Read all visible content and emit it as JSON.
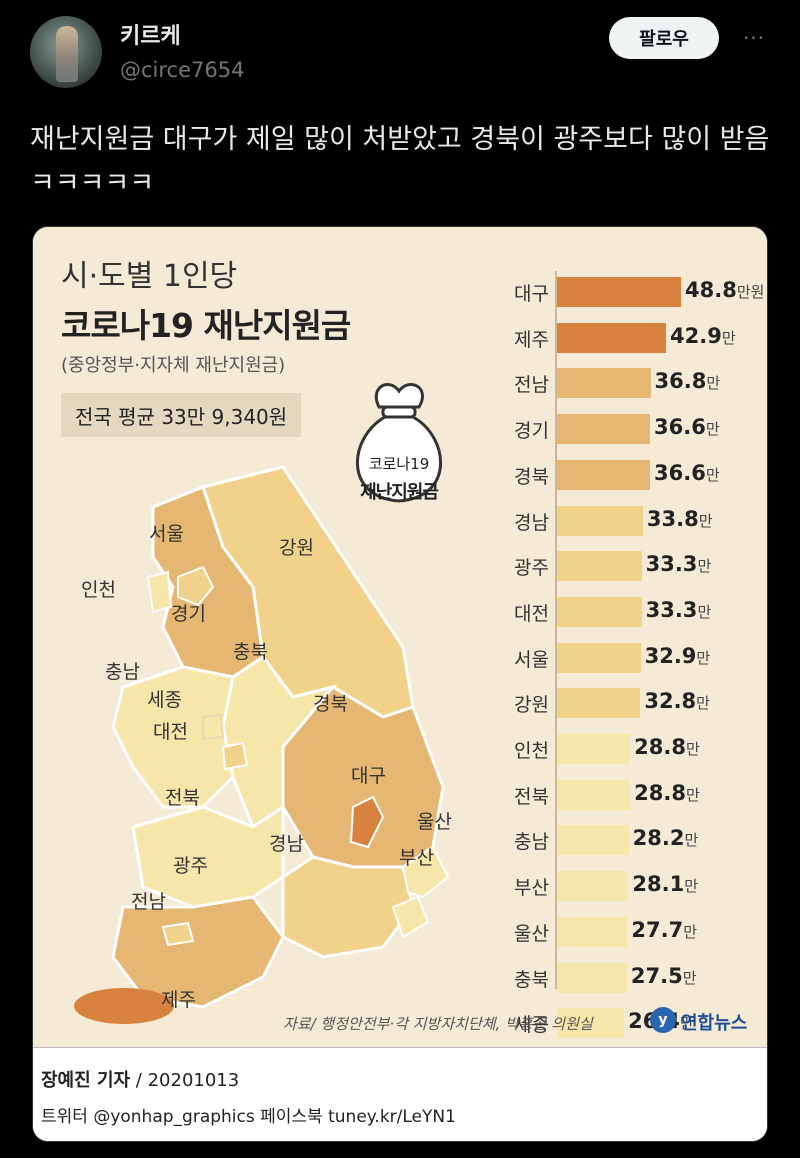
{
  "tweet": {
    "display_name": "키르케",
    "handle": "@circe7654",
    "follow_label": "팔로우",
    "more_label": "···",
    "text": "재난지원금 대구가 제일 많이 처받았고 경북이 광주보다 많이 받음ㅋㅋㅋㅋㅋ"
  },
  "graphic": {
    "title_line1": "시·도별 1인당",
    "title_line2": "코로나19 재난지원금",
    "subtitle": "(중앙정부·지자체 재난지원금)",
    "average": "전국 평균 33만 9,340원",
    "bag_label1": "코로나19",
    "bag_label2": "재난지원금",
    "source": "자료/ 행정안전부·각 지방자치단체, 박홍근 의원실",
    "logo_text": "연합뉴스",
    "reporter_name": "장예진 기자",
    "reporter_date": " / 20201013",
    "social": "트위터 @yonhap_graphics  페이스북 tuney.kr/LeYN1",
    "map_labels": {
      "seoul": "서울",
      "incheon": "인천",
      "gyeonggi": "경기",
      "gangwon": "강원",
      "chungbuk": "충북",
      "chungnam": "충남",
      "sejong": "세종",
      "daejeon": "대전",
      "gyeongbuk": "경북",
      "daegu": "대구",
      "jeonbuk": "전북",
      "gyeongnam": "경남",
      "ulsan": "울산",
      "busan": "부산",
      "gwangju": "광주",
      "jeonnam": "전남",
      "jeju": "제주"
    },
    "colors": {
      "top": "#d9823f",
      "high": "#e6b772",
      "mid": "#f0d28a",
      "low": "#f7e6aa"
    }
  },
  "chart_data": {
    "type": "bar",
    "orientation": "horizontal",
    "unit": "만원",
    "categories": [
      "대구",
      "제주",
      "전남",
      "경기",
      "경북",
      "경남",
      "광주",
      "대전",
      "서울",
      "강원",
      "인천",
      "전북",
      "충남",
      "부산",
      "울산",
      "충북",
      "세종"
    ],
    "values": [
      48.8,
      42.9,
      36.8,
      36.6,
      36.6,
      33.8,
      33.3,
      33.3,
      32.9,
      32.8,
      28.8,
      28.8,
      28.2,
      28.1,
      27.7,
      27.5,
      26.4
    ],
    "value_labels": [
      "48.8",
      "42.9",
      "36.8",
      "36.6",
      "36.6",
      "33.8",
      "33.3",
      "33.3",
      "32.9",
      "32.8",
      "28.8",
      "28.8",
      "28.2",
      "28.1",
      "27.7",
      "27.5",
      "26.4"
    ],
    "unit_labels": [
      "만원",
      "만",
      "만",
      "만",
      "만",
      "만",
      "만",
      "만",
      "만",
      "만",
      "만",
      "만",
      "만",
      "만",
      "만",
      "만",
      "만"
    ]
  }
}
